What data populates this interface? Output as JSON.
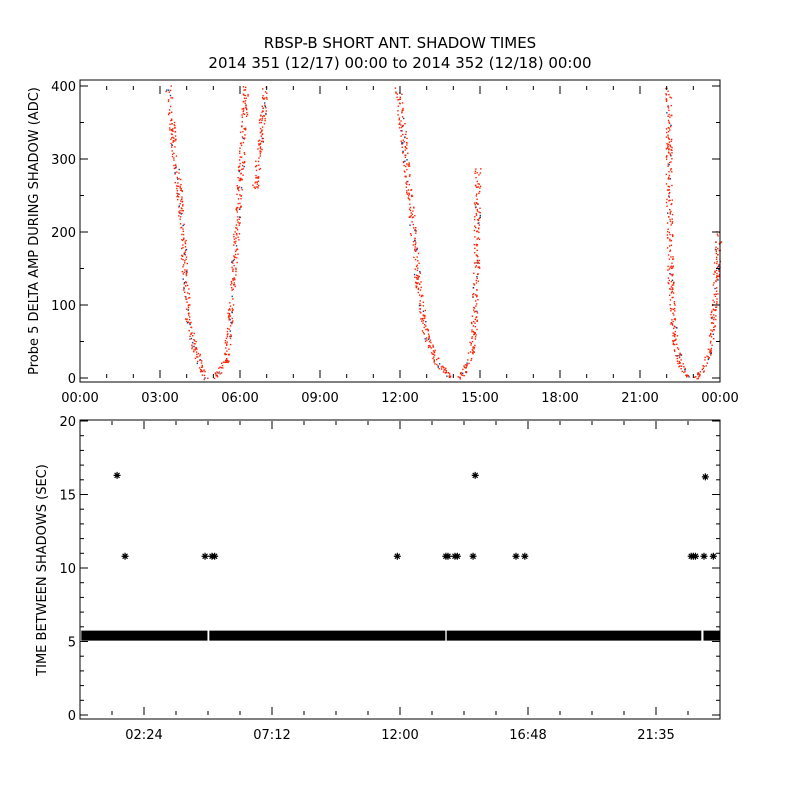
{
  "title": "RBSP-B SHORT ANT. SHADOW TIMES",
  "subtitle": "2014 351 (12/17) 00:00 to 2014 352 (12/18) 00:00",
  "colors": {
    "points": "#ff2200",
    "axis": "#000000",
    "stars": "#000000"
  },
  "chart_data": [
    {
      "type": "scatter",
      "ylabel": "Probe 5 DELTA AMP DURING SHADOW (ADC)",
      "xlabel": "",
      "xlim": [
        0,
        24
      ],
      "ylim": [
        0,
        400
      ],
      "xtick_labels": [
        "00:00",
        "03:00",
        "06:00",
        "09:00",
        "12:00",
        "15:00",
        "18:00",
        "21:00",
        "00:00"
      ],
      "xticks": [
        0,
        3,
        6,
        9,
        12,
        15,
        18,
        21,
        24
      ],
      "ytick_labels": [
        "0",
        "100",
        "200",
        "300",
        "400"
      ],
      "yticks": [
        0,
        100,
        200,
        300,
        400
      ],
      "x_units": "hours",
      "passes": [
        {
          "name": "pass-1-descending",
          "points": [
            [
              3.3,
              400
            ],
            [
              3.5,
              320
            ],
            [
              3.75,
              240
            ],
            [
              3.95,
              130
            ],
            [
              4.05,
              80
            ],
            [
              4.3,
              40
            ],
            [
              4.69,
              0
            ]
          ]
        },
        {
          "name": "pass-1-ascending",
          "points": [
            [
              5.0,
              0
            ],
            [
              5.3,
              15
            ],
            [
              5.45,
              25
            ],
            [
              5.6,
              70
            ],
            [
              5.75,
              150
            ],
            [
              5.95,
              250
            ],
            [
              6.1,
              330
            ],
            [
              6.2,
              400
            ]
          ]
        },
        {
          "name": "pass-1-high",
          "points": [
            [
              6.55,
              260
            ],
            [
              6.75,
              330
            ],
            [
              6.95,
              400
            ]
          ]
        },
        {
          "name": "pass-2-descending",
          "points": [
            [
              11.9,
              400
            ],
            [
              12.15,
              320
            ],
            [
              12.4,
              230
            ],
            [
              12.7,
              120
            ],
            [
              12.95,
              60
            ],
            [
              13.4,
              20
            ],
            [
              13.95,
              0
            ]
          ]
        },
        {
          "name": "pass-2-ascending",
          "points": [
            [
              14.15,
              0
            ],
            [
              14.4,
              10
            ],
            [
              14.6,
              25
            ],
            [
              14.75,
              60
            ],
            [
              14.85,
              150
            ],
            [
              14.9,
              290
            ]
          ]
        },
        {
          "name": "pass-3-descending",
          "points": [
            [
              22.05,
              400
            ],
            [
              22.08,
              230
            ],
            [
              22.15,
              110
            ],
            [
              22.3,
              50
            ],
            [
              22.5,
              20
            ],
            [
              22.75,
              0
            ]
          ]
        },
        {
          "name": "pass-3-ascending",
          "points": [
            [
              23.05,
              0
            ],
            [
              23.35,
              10
            ],
            [
              23.6,
              40
            ],
            [
              23.8,
              110
            ],
            [
              23.95,
              200
            ]
          ]
        }
      ]
    },
    {
      "type": "scatter",
      "ylabel": "TIME BETWEEN SHADOWS (SEC)",
      "xlabel": "",
      "xlim": [
        0,
        24
      ],
      "ylim": [
        0,
        20
      ],
      "xtick_labels": [
        "02:24",
        "07:12",
        "12:00",
        "16:48",
        "21:35"
      ],
      "xticks": [
        2.4,
        7.2,
        12.0,
        16.8,
        21.6
      ],
      "ytick_labels": [
        "0",
        "5",
        "10",
        "15",
        "20"
      ],
      "yticks": [
        0,
        5,
        10,
        15,
        20
      ],
      "baseline_value": 5.4,
      "baseline_ranges": [
        [
          0.05,
          4.78
        ],
        [
          4.85,
          13.7
        ],
        [
          13.75,
          23.3
        ],
        [
          23.38,
          24
        ]
      ],
      "stars": [
        [
          1.39,
          16.3
        ],
        [
          1.69,
          10.8
        ],
        [
          4.69,
          10.8
        ],
        [
          4.95,
          10.8
        ],
        [
          5.05,
          10.8
        ],
        [
          11.9,
          10.8
        ],
        [
          13.72,
          10.8
        ],
        [
          13.8,
          10.8
        ],
        [
          14.06,
          10.8
        ],
        [
          14.15,
          10.8
        ],
        [
          14.74,
          10.8
        ],
        [
          14.82,
          16.3
        ],
        [
          16.35,
          10.8
        ],
        [
          16.68,
          10.8
        ],
        [
          22.92,
          10.8
        ],
        [
          23.0,
          10.8
        ],
        [
          23.08,
          10.8
        ],
        [
          23.45,
          16.2
        ],
        [
          23.4,
          10.8
        ],
        [
          23.75,
          10.8
        ]
      ]
    }
  ]
}
